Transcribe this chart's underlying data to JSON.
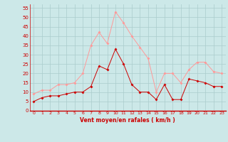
{
  "x": [
    0,
    1,
    2,
    3,
    4,
    5,
    6,
    7,
    8,
    9,
    10,
    11,
    12,
    13,
    14,
    15,
    16,
    17,
    18,
    19,
    20,
    21,
    22,
    23
  ],
  "wind_avg": [
    5,
    7,
    8,
    8,
    9,
    10,
    10,
    13,
    24,
    22,
    33,
    25,
    14,
    10,
    10,
    6,
    14,
    6,
    6,
    17,
    16,
    15,
    13,
    13
  ],
  "wind_gust": [
    9,
    11,
    11,
    14,
    14,
    15,
    20,
    35,
    42,
    36,
    53,
    47,
    40,
    34,
    28,
    10,
    20,
    20,
    15,
    22,
    26,
    26,
    21,
    20
  ],
  "background_color": "#cce8e8",
  "grid_color": "#aacccc",
  "avg_color": "#cc0000",
  "gust_color": "#ff9999",
  "xlabel": "Vent moyen/en rafales ( km/h )",
  "xlabel_color": "#cc0000",
  "tick_color": "#cc0000",
  "ylim": [
    0,
    57
  ],
  "yticks": [
    0,
    5,
    10,
    15,
    20,
    25,
    30,
    35,
    40,
    45,
    50,
    55
  ],
  "xlim": [
    -0.5,
    23.5
  ]
}
